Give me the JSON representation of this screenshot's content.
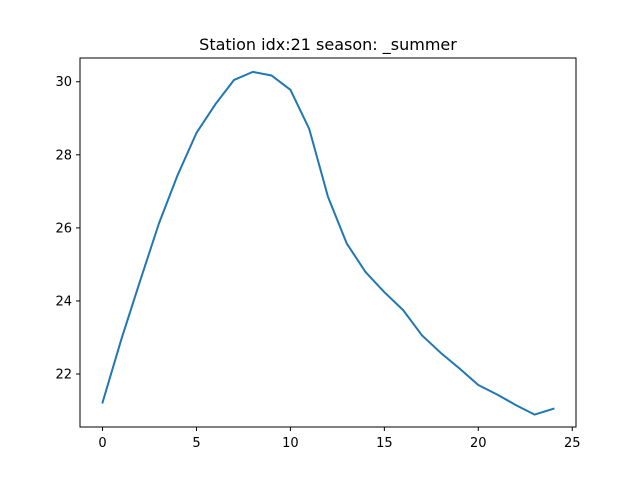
{
  "chart_data": {
    "type": "line",
    "title": "Station idx:21 season: _summer",
    "xlabel": "",
    "ylabel": "",
    "xlim": [
      -1.2,
      25.2
    ],
    "ylim": [
      20.55,
      30.65
    ],
    "x_ticks": [
      0,
      5,
      10,
      15,
      20,
      25
    ],
    "y_ticks": [
      22,
      24,
      26,
      28,
      30
    ],
    "grid": false,
    "series": [
      {
        "color": "#1f77b4",
        "x": [
          0,
          1,
          2,
          3,
          4,
          5,
          6,
          7,
          8,
          9,
          10,
          11,
          12,
          13,
          14,
          15,
          16,
          17,
          18,
          19,
          20,
          21,
          22,
          23,
          24
        ],
        "y": [
          21.22,
          22.95,
          24.55,
          26.12,
          27.45,
          28.6,
          29.38,
          30.05,
          30.27,
          30.17,
          29.78,
          28.71,
          26.85,
          25.57,
          24.79,
          24.24,
          23.75,
          23.06,
          22.58,
          22.15,
          21.7,
          21.44,
          21.15,
          20.89,
          21.05
        ]
      }
    ]
  }
}
